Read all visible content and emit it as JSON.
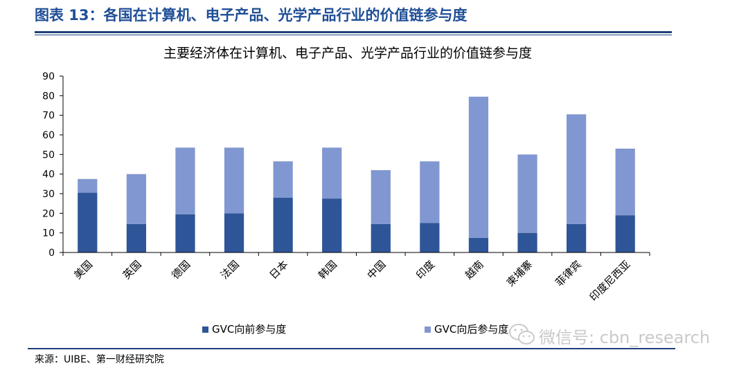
{
  "figure": {
    "title": "图表 13：各国在计算机、电子产品、光学产品行业的价值链参与度",
    "source": "来源：UIBE、第一财经研究院"
  },
  "watermark": {
    "text": "微信号: cbn_research",
    "icon": "wechat-icon"
  },
  "colors": {
    "forward": "#2e5597",
    "backward": "#8197d1",
    "title": "#1f4e96"
  },
  "chart_data": {
    "type": "bar",
    "stacked": true,
    "title": "主要经济体在计算机、电子产品、光学产品行业的价值链参与度",
    "xlabel": "",
    "ylabel": "",
    "ylim": [
      0,
      90
    ],
    "yticks": [
      "0",
      "10",
      "20",
      "30",
      "40",
      "50",
      "60",
      "70",
      "80",
      "90"
    ],
    "grid": false,
    "legend_position": "bottom",
    "categories": [
      "美国",
      "英国",
      "德国",
      "法国",
      "日本",
      "韩国",
      "中国",
      "印度",
      "越南",
      "柬埔寨",
      "菲律宾",
      "印度尼西亚"
    ],
    "series": [
      {
        "name": "GVC向前参与度",
        "values": [
          30.5,
          14.5,
          19.5,
          20,
          28,
          27.5,
          14.5,
          15,
          7.5,
          10,
          14.5,
          19
        ]
      },
      {
        "name": "GVC向后参与度",
        "values": [
          7,
          25.5,
          34,
          33.5,
          18.5,
          26,
          27.5,
          31.5,
          72,
          40,
          56,
          34
        ]
      }
    ]
  }
}
